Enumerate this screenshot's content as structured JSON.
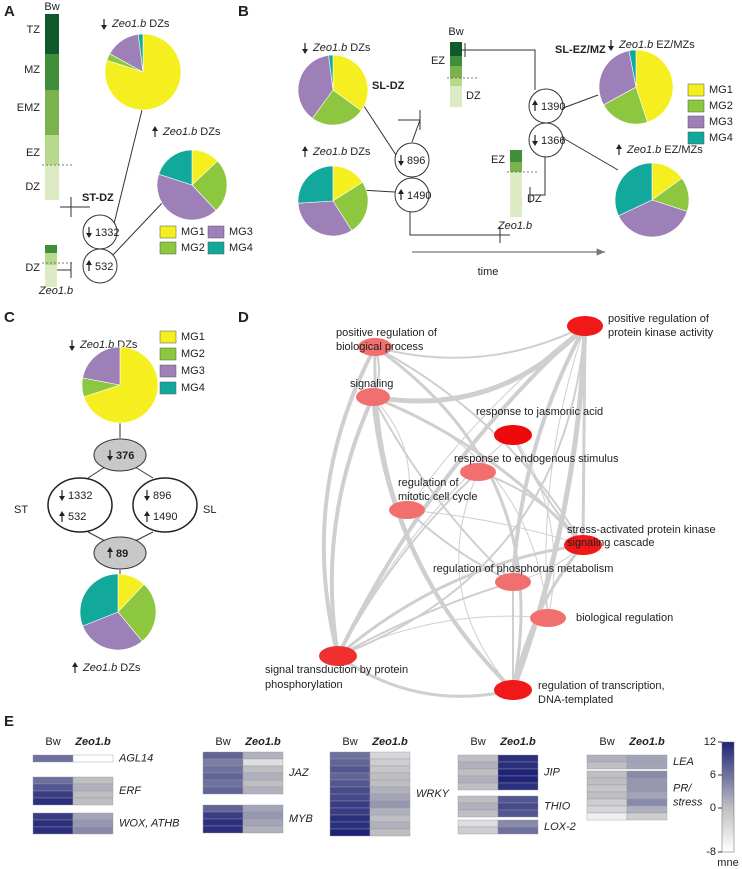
{
  "groups": {
    "names": [
      "MG1",
      "MG2",
      "MG3",
      "MG4"
    ],
    "colors": [
      "#f5ef1f",
      "#8dc63f",
      "#9d80b7",
      "#12a89c"
    ]
  },
  "A": {
    "label": "A",
    "bw": {
      "name": "Bw",
      "zones": [
        "TZ",
        "MZ",
        "EMZ",
        "EZ",
        "DZ"
      ]
    },
    "mutant": {
      "name": "Zeo1.b",
      "zone": "DZ"
    },
    "comparison": "ST-DZ",
    "counts": {
      "down": 1332,
      "up": 532
    },
    "pies": [
      {
        "direction": "down",
        "gene": "Zeo1.b",
        "tissue": "DZs",
        "values": [
          80,
          3,
          15,
          2
        ]
      },
      {
        "direction": "up",
        "gene": "Zeo1.b",
        "tissue": "DZs",
        "values": [
          13,
          25,
          42,
          20
        ]
      }
    ]
  },
  "B": {
    "label": "B",
    "bw": {
      "name": "Bw",
      "zones": [
        "EZ",
        "DZ"
      ]
    },
    "mutant": {
      "name": "Zeo1.b",
      "zones": [
        "EZ",
        "DZ"
      ]
    },
    "comparisons": [
      {
        "name": "SL-DZ",
        "down": 896,
        "up": 1490
      },
      {
        "name": "SL-EZ/MZ",
        "up": 1390,
        "down": 1366
      }
    ],
    "axis": "time",
    "pies": [
      {
        "direction": "down",
        "gene": "Zeo1.b",
        "tissue": "DZs",
        "values": [
          35,
          25,
          38,
          2
        ]
      },
      {
        "direction": "up",
        "gene": "Zeo1.b",
        "tissue": "DZs",
        "values": [
          16,
          25,
          33,
          26
        ]
      },
      {
        "direction": "down",
        "gene": "Zeo1.b",
        "tissue": "EZ/MZs",
        "values": [
          45,
          22,
          30,
          3
        ]
      },
      {
        "direction": "up",
        "gene": "Zeo1.b",
        "tissue": "EZ/MZs",
        "values": [
          15,
          15,
          38,
          32
        ]
      }
    ]
  },
  "C": {
    "label": "C",
    "pies": [
      {
        "direction": "down",
        "gene": "Zeo1.b",
        "tissue": "DZs",
        "values": [
          70,
          8,
          22,
          0
        ]
      },
      {
        "direction": "up",
        "gene": "Zeo1.b",
        "tissue": "DZs",
        "values": [
          12,
          27,
          30,
          31
        ]
      }
    ],
    "shared": [
      {
        "direction": "down",
        "count": 376
      },
      {
        "direction": "up",
        "count": 89
      }
    ],
    "sets": [
      {
        "name": "ST",
        "down": 1332,
        "up": 532
      },
      {
        "name": "SL",
        "down": 896,
        "up": 1490
      }
    ]
  },
  "D": {
    "label": "D",
    "nodes": [
      {
        "label": [
          "positive regulation of",
          "protein kinase activity"
        ],
        "color": "#f01818"
      },
      {
        "label": [
          "positive regulation of",
          "biological process"
        ],
        "color": "#f26f6f"
      },
      {
        "label": [
          "signaling"
        ],
        "color": "#f26f6f"
      },
      {
        "label": [
          "response to jasmonic acid"
        ],
        "color": "#ee0a0a"
      },
      {
        "label": [
          "response to endogenous stimulus"
        ],
        "color": "#f26f6f"
      },
      {
        "label": [
          "regulation of",
          "mitotic cell cycle"
        ],
        "color": "#f26f6f"
      },
      {
        "label": [
          "stress-activated protein kinase",
          "signaling cascade"
        ],
        "color": "#f01818"
      },
      {
        "label": [
          "regulation of phosphorus metabolism"
        ],
        "color": "#f26f6f"
      },
      {
        "label": [
          "biological regulation"
        ],
        "color": "#f26f6f"
      },
      {
        "label": [
          "signal transduction by protein",
          "phosphorylation"
        ],
        "color": "#f03030"
      },
      {
        "label": [
          "regulation of transcription,",
          "DNA-templated"
        ],
        "color": "#f01818"
      }
    ]
  },
  "E": {
    "label": "E",
    "heatmaps": [
      {
        "columns": [
          "Bw",
          "Zeo1.b"
        ],
        "blocks": [
          {
            "label": [
              "AGL14"
            ],
            "rows": [
              [
                6,
                -8
              ]
            ]
          },
          {
            "label": [
              "ERF"
            ],
            "rows": [
              [
                6,
                0
              ],
              [
                8,
                1
              ],
              [
                10,
                0
              ],
              [
                11,
                0
              ]
            ]
          },
          {
            "label": [
              "WOX, ATHB"
            ],
            "rows": [
              [
                10,
                2
              ],
              [
                11,
                3
              ],
              [
                11,
                4
              ]
            ]
          }
        ]
      },
      {
        "columns": [
          "Bw",
          "Zeo1.b"
        ],
        "blocks": [
          {
            "label": [
              "JAZ"
            ],
            "rows": [
              [
                7,
                1
              ],
              [
                5,
                -4
              ],
              [
                6,
                0
              ],
              [
                7,
                1
              ],
              [
                6,
                0
              ],
              [
                7,
                1
              ]
            ]
          },
          {
            "label": [
              "MYB"
            ],
            "rows": [
              [
                7,
                2
              ],
              [
                10,
                3
              ],
              [
                11,
                2
              ],
              [
                11,
                1
              ]
            ]
          }
        ]
      },
      {
        "columns": [
          "Bw",
          "Zeo1.b"
        ],
        "blocks": [
          {
            "label": [
              "WRKY"
            ],
            "rows": [
              [
                6,
                -3
              ],
              [
                7,
                -2
              ],
              [
                8,
                -1
              ],
              [
                7,
                0
              ],
              [
                8,
                0
              ],
              [
                9,
                1
              ],
              [
                9,
                2
              ],
              [
                10,
                3
              ],
              [
                10,
                1
              ],
              [
                11,
                0
              ],
              [
                11,
                1
              ],
              [
                12,
                0
              ]
            ]
          }
        ]
      },
      {
        "columns": [
          "Bw",
          "Zeo1.b"
        ],
        "blocks": [
          {
            "label": [
              "JIP"
            ],
            "rows": [
              [
                0,
                11
              ],
              [
                1,
                11
              ],
              [
                0,
                12
              ],
              [
                1,
                12
              ],
              [
                0,
                11
              ]
            ]
          },
          {
            "label": [
              "THIO"
            ],
            "rows": [
              [
                0,
                8
              ],
              [
                1,
                9
              ],
              [
                0,
                8
              ]
            ]
          },
          {
            "label": [
              "LOX-2"
            ],
            "rows": [
              [
                -4,
                4
              ],
              [
                -2,
                6
              ]
            ]
          }
        ]
      },
      {
        "columns": [
          "Bw",
          "Zeo1.b"
        ],
        "blocks": [
          {
            "label": [
              "LEA"
            ],
            "rows": [
              [
                1,
                2
              ],
              [
                0,
                2
              ]
            ]
          },
          {
            "label": [
              "PR/",
              "stress"
            ],
            "rows": [
              [
                0,
                4
              ],
              [
                0,
                3
              ],
              [
                -1,
                3
              ],
              [
                0,
                2
              ],
              [
                -2,
                4
              ],
              [
                -3,
                1
              ],
              [
                -6,
                -2
              ]
            ]
          }
        ]
      }
    ],
    "colorbar": {
      "lim": [
        -8,
        12
      ],
      "ticks": [
        12,
        6,
        0,
        -8
      ],
      "label": "mne"
    }
  }
}
